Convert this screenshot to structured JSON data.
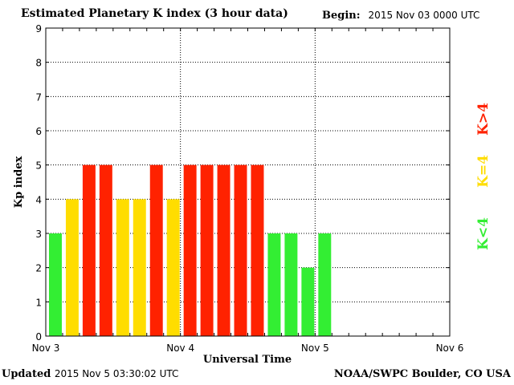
{
  "header": {
    "title": "Estimated Planetary K index (3 hour data)",
    "begin_label": "Begin:",
    "begin_value": "2015 Nov 03 0000 UTC"
  },
  "footer": {
    "updated_label": "Updated",
    "updated_value": "2015 Nov  5 03:30:02 UTC",
    "credit": "NOAA/SWPC Boulder, CO USA"
  },
  "colors": {
    "low": "#33ee33",
    "mid": "#ffdd00",
    "high": "#ff2200"
  },
  "chart_data": {
    "type": "bar",
    "title": "Estimated Planetary K index (3 hour data)",
    "xlabel": "Universal Time",
    "ylabel": "Kp index",
    "ylim": [
      0,
      9
    ],
    "y_ticks": [
      "0",
      "1",
      "2",
      "3",
      "4",
      "5",
      "6",
      "7",
      "8",
      "9"
    ],
    "x_ticks": [
      "Nov 3",
      "Nov 4",
      "Nov 5",
      "Nov 6"
    ],
    "grid": true,
    "legend_placement": "right",
    "legend": [
      "K<4",
      "K=4",
      "K>4"
    ],
    "series": [
      {
        "values": [
          3,
          4,
          5,
          5,
          4,
          4,
          5,
          4,
          5,
          5,
          5,
          5,
          5,
          3,
          3,
          2,
          3
        ]
      }
    ]
  }
}
